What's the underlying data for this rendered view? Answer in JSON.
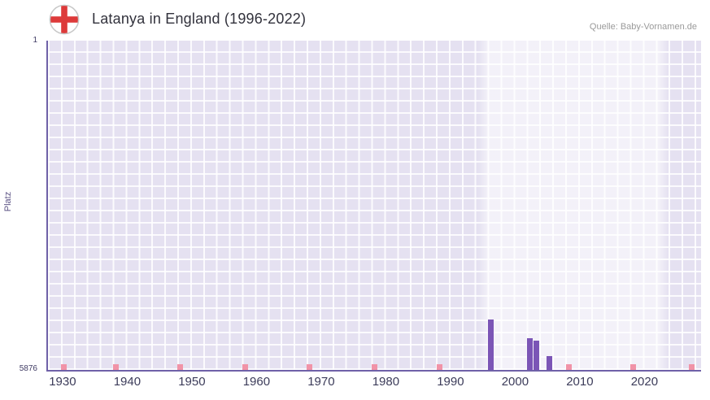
{
  "header": {
    "title": "Latanya in England (1996-2022)",
    "source": "Quelle: Baby-Vornamen.de"
  },
  "chart_data": {
    "type": "bar",
    "title": "Latanya in England (1996-2022)",
    "xlabel": "",
    "ylabel": "Platz",
    "x_ticks": [
      1930,
      1940,
      1950,
      1960,
      1970,
      1980,
      1990,
      2000,
      2010,
      2020
    ],
    "y_ticks": [
      "1",
      "5876"
    ],
    "y_axis": {
      "min": 1,
      "max": 5876,
      "inverted": true
    },
    "x_range": [
      1927.5,
      2028.5
    ],
    "highlight_period": [
      1994,
      2023.5
    ],
    "series": [
      {
        "name": "Platz",
        "values": [
          {
            "year": 1996,
            "rank": 4978
          },
          {
            "year": 2002,
            "rank": 5315
          },
          {
            "year": 2003,
            "rank": 5358
          },
          {
            "year": 2005,
            "rank": 5630
          }
        ]
      }
    ],
    "no_data_years": [
      1930,
      1938,
      1948,
      1958,
      1968,
      1978,
      1988,
      2008,
      2018,
      2027
    ],
    "legend": "none",
    "grid": "on",
    "colors": {
      "bar": "#7b55b6",
      "no_data": "#f193a7",
      "plot_bg": "#e5e1f1",
      "highlight_bg": "#f2f0f8",
      "grid": "#ffffff",
      "axis": "#6f61a8",
      "tick_label": "#3c3c5a",
      "flag_red": "#dd3a3a"
    }
  }
}
